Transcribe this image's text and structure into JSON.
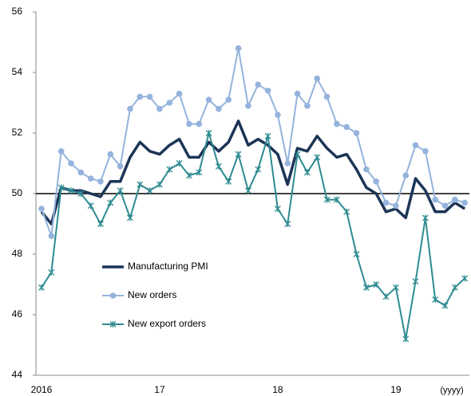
{
  "chart_data": {
    "type": "line",
    "categories": [
      "2016",
      null,
      null,
      null,
      null,
      null,
      null,
      null,
      null,
      null,
      null,
      null,
      "17",
      null,
      null,
      null,
      null,
      null,
      null,
      null,
      null,
      null,
      null,
      null,
      "18",
      null,
      null,
      null,
      null,
      null,
      null,
      null,
      null,
      null,
      null,
      null,
      "19",
      null,
      null,
      null,
      null,
      null,
      null,
      null
    ],
    "x_unit_label": "(yyyy)",
    "ylim": [
      44,
      56
    ],
    "yticks": [
      44,
      46,
      48,
      50,
      52,
      54,
      56
    ],
    "reference_line": 50,
    "series": [
      {
        "name": "Manufacturing PMI",
        "color": "#1c3557",
        "marker": "none",
        "values": [
          49.4,
          49.0,
          50.2,
          50.1,
          50.1,
          50.0,
          49.9,
          50.4,
          50.4,
          51.2,
          51.7,
          51.4,
          51.3,
          51.6,
          51.8,
          51.2,
          51.2,
          51.7,
          51.4,
          51.7,
          52.4,
          51.6,
          51.8,
          51.6,
          51.3,
          50.3,
          51.5,
          51.4,
          51.9,
          51.5,
          51.2,
          51.3,
          50.8,
          50.2,
          50.0,
          49.4,
          49.5,
          49.2,
          50.5,
          50.1,
          49.4,
          49.4,
          49.7,
          49.5
        ]
      },
      {
        "name": "New orders",
        "color": "#95b3dc",
        "marker": "circle",
        "values": [
          49.5,
          48.6,
          51.4,
          51.0,
          50.7,
          50.5,
          50.4,
          51.3,
          50.9,
          52.8,
          53.2,
          53.2,
          52.8,
          53.0,
          53.3,
          52.3,
          52.3,
          53.1,
          52.8,
          53.1,
          54.8,
          52.9,
          53.6,
          53.4,
          52.6,
          51.0,
          53.3,
          52.9,
          53.8,
          53.2,
          52.3,
          52.2,
          52.0,
          50.8,
          50.4,
          49.7,
          49.6,
          50.6,
          51.6,
          51.4,
          49.8,
          49.6,
          49.8,
          49.7
        ]
      },
      {
        "name": "New export orders",
        "color": "#2e8b91",
        "marker": "star",
        "values": [
          46.9,
          47.4,
          50.2,
          50.1,
          50.0,
          49.6,
          49.0,
          49.7,
          50.1,
          49.2,
          50.3,
          50.1,
          50.3,
          50.8,
          51.0,
          50.6,
          50.7,
          52.0,
          50.9,
          50.4,
          51.3,
          50.1,
          50.8,
          51.9,
          49.5,
          49.0,
          51.3,
          50.7,
          51.2,
          49.8,
          49.8,
          49.4,
          48.0,
          46.9,
          47.0,
          46.6,
          46.9,
          45.2,
          47.1,
          49.2,
          46.5,
          46.3,
          46.9,
          47.2
        ]
      }
    ]
  }
}
